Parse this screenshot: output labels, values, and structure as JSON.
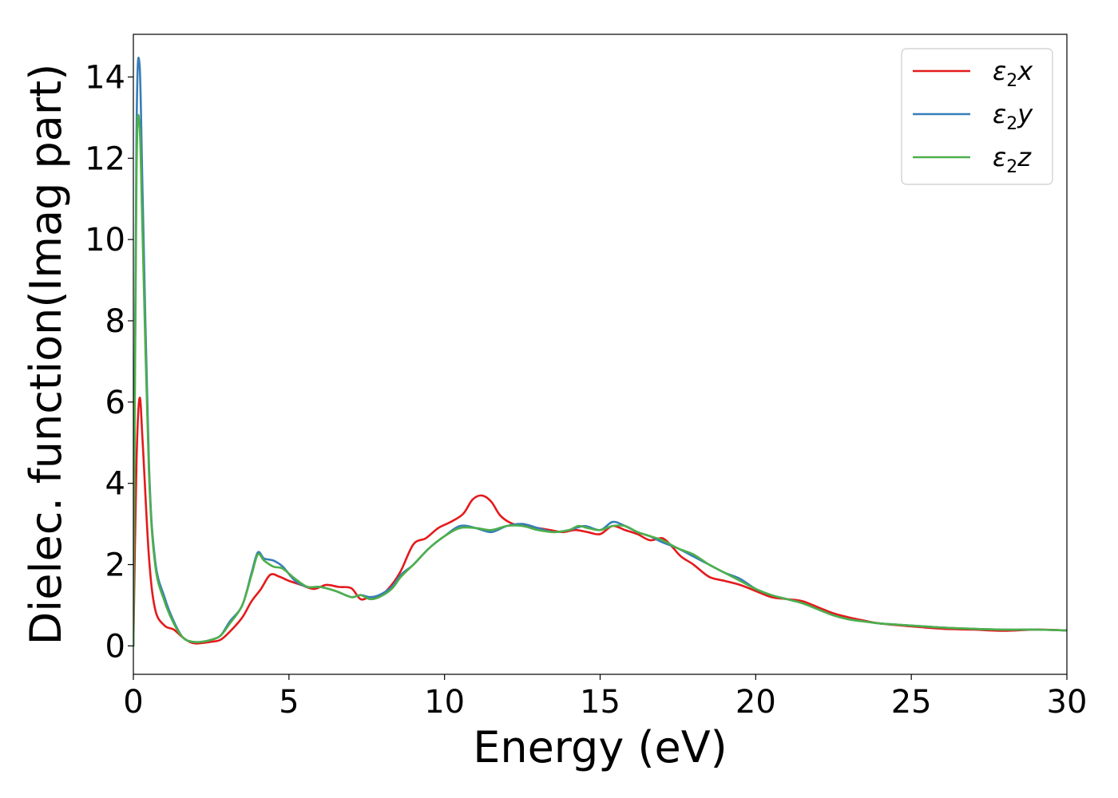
{
  "chart_data": {
    "type": "line",
    "title": "",
    "xlabel": "Energy (eV)",
    "ylabel": "Dielec. function(Imag part)",
    "xlim": [
      0,
      30
    ],
    "ylim": [
      -0.7,
      15.05
    ],
    "xticks": [
      0,
      5,
      10,
      15,
      20,
      25,
      30
    ],
    "yticks": [
      0,
      2,
      4,
      6,
      8,
      10,
      12,
      14
    ],
    "grid": false,
    "legend_position": "top-right",
    "series": [
      {
        "name": "ε2x",
        "legend": {
          "base": "ε",
          "sub": "2",
          "suffix": "x"
        },
        "color": "#e41a1c",
        "x": [
          0,
          0.1,
          0.2,
          0.3,
          0.5,
          0.7,
          1.0,
          1.3,
          1.6,
          1.9,
          2.2,
          2.5,
          2.8,
          3.1,
          3.5,
          3.8,
          4.1,
          4.4,
          4.7,
          5.0,
          5.4,
          5.8,
          6.2,
          6.6,
          7.0,
          7.3,
          7.6,
          7.9,
          8.3,
          8.6,
          9.0,
          9.4,
          9.8,
          10.2,
          10.6,
          10.9,
          11.2,
          11.5,
          11.8,
          12.2,
          12.6,
          13.0,
          13.4,
          13.8,
          14.2,
          14.6,
          15.0,
          15.4,
          15.8,
          16.2,
          16.6,
          17.0,
          17.3,
          17.6,
          18.0,
          18.5,
          19.0,
          19.5,
          20.0,
          20.5,
          21.0,
          21.5,
          22.0,
          22.5,
          23.0,
          23.5,
          24.0,
          25.0,
          26.0,
          27.0,
          28.0,
          29.0,
          30.0
        ],
        "y": [
          0,
          4.5,
          6.1,
          5.0,
          2.2,
          0.9,
          0.5,
          0.4,
          0.2,
          0.07,
          0.07,
          0.1,
          0.15,
          0.35,
          0.7,
          1.1,
          1.4,
          1.75,
          1.7,
          1.6,
          1.5,
          1.4,
          1.5,
          1.45,
          1.42,
          1.15,
          1.2,
          1.2,
          1.5,
          1.85,
          2.5,
          2.65,
          2.9,
          3.05,
          3.25,
          3.6,
          3.7,
          3.55,
          3.2,
          3.0,
          2.95,
          2.9,
          2.85,
          2.8,
          2.85,
          2.8,
          2.75,
          2.95,
          2.85,
          2.75,
          2.6,
          2.65,
          2.45,
          2.2,
          2.0,
          1.7,
          1.6,
          1.5,
          1.35,
          1.2,
          1.15,
          1.1,
          0.95,
          0.8,
          0.7,
          0.62,
          0.55,
          0.48,
          0.42,
          0.4,
          0.37,
          0.4,
          0.38
        ]
      },
      {
        "name": "ε2y",
        "legend": {
          "base": "ε",
          "sub": "2",
          "suffix": "y"
        },
        "color": "#377eb8",
        "x": [
          0,
          0.1,
          0.2,
          0.3,
          0.5,
          0.7,
          1.0,
          1.3,
          1.6,
          1.9,
          2.2,
          2.5,
          2.8,
          3.1,
          3.5,
          3.8,
          4.0,
          4.2,
          4.5,
          4.8,
          5.2,
          5.6,
          6.0,
          6.5,
          7.0,
          7.3,
          7.6,
          7.9,
          8.3,
          8.6,
          9.0,
          9.5,
          10.0,
          10.5,
          11.0,
          11.5,
          12.0,
          12.5,
          13.0,
          13.5,
          14.0,
          14.5,
          15.0,
          15.4,
          15.8,
          16.2,
          16.6,
          17.0,
          17.5,
          18.0,
          18.5,
          19.0,
          19.5,
          20.0,
          20.5,
          21.0,
          21.5,
          22.0,
          22.5,
          23.0,
          23.5,
          24.0,
          25.0,
          26.0,
          27.0,
          28.0,
          29.0,
          30.0
        ],
        "y": [
          0,
          12.5,
          14.3,
          11.0,
          4.5,
          2.1,
          1.2,
          0.6,
          0.2,
          0.1,
          0.1,
          0.15,
          0.25,
          0.6,
          1.0,
          1.8,
          2.3,
          2.15,
          2.1,
          1.95,
          1.6,
          1.45,
          1.45,
          1.35,
          1.2,
          1.25,
          1.2,
          1.25,
          1.45,
          1.75,
          2.0,
          2.4,
          2.7,
          2.95,
          2.9,
          2.8,
          2.95,
          3.0,
          2.9,
          2.8,
          2.85,
          2.95,
          2.85,
          3.05,
          2.95,
          2.8,
          2.7,
          2.55,
          2.4,
          2.2,
          2.0,
          1.8,
          1.65,
          1.4,
          1.25,
          1.15,
          1.05,
          0.9,
          0.75,
          0.65,
          0.6,
          0.55,
          0.5,
          0.45,
          0.42,
          0.4,
          0.4,
          0.38
        ]
      },
      {
        "name": "ε2z",
        "legend": {
          "base": "ε",
          "sub": "2",
          "suffix": "z"
        },
        "color": "#4daf4a",
        "x": [
          0,
          0.1,
          0.2,
          0.3,
          0.5,
          0.7,
          1.0,
          1.3,
          1.6,
          1.9,
          2.2,
          2.5,
          2.8,
          3.1,
          3.5,
          3.8,
          4.0,
          4.2,
          4.5,
          4.8,
          5.2,
          5.6,
          6.0,
          6.5,
          7.0,
          7.3,
          7.6,
          7.9,
          8.3,
          8.6,
          9.0,
          9.5,
          10.0,
          10.5,
          11.0,
          11.5,
          12.0,
          12.5,
          13.0,
          13.5,
          14.0,
          14.3,
          14.6,
          15.0,
          15.4,
          15.8,
          16.2,
          16.6,
          17.0,
          17.5,
          18.0,
          18.5,
          19.0,
          19.5,
          20.0,
          20.5,
          21.0,
          21.5,
          22.0,
          22.5,
          23.0,
          23.5,
          24.0,
          25.0,
          26.0,
          27.0,
          28.0,
          29.0,
          30.0
        ],
        "y": [
          0,
          11.5,
          12.8,
          10.0,
          4.3,
          2.0,
          1.1,
          0.55,
          0.2,
          0.1,
          0.1,
          0.15,
          0.25,
          0.55,
          1.0,
          1.75,
          2.25,
          2.1,
          1.95,
          1.9,
          1.65,
          1.45,
          1.45,
          1.35,
          1.2,
          1.25,
          1.15,
          1.2,
          1.4,
          1.7,
          2.0,
          2.4,
          2.7,
          2.9,
          2.9,
          2.85,
          2.95,
          2.95,
          2.85,
          2.8,
          2.85,
          2.95,
          2.9,
          2.85,
          2.95,
          2.95,
          2.8,
          2.7,
          2.6,
          2.4,
          2.25,
          2.0,
          1.8,
          1.6,
          1.4,
          1.25,
          1.15,
          1.05,
          0.9,
          0.75,
          0.65,
          0.6,
          0.55,
          0.5,
          0.45,
          0.42,
          0.4,
          0.4,
          0.38
        ]
      }
    ]
  }
}
